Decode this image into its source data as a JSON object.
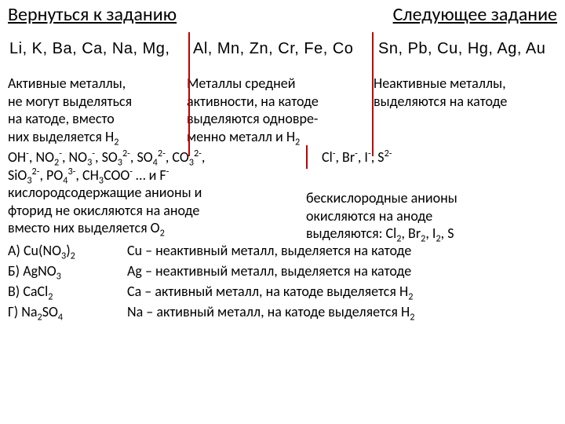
{
  "nav": {
    "back": "Вернуться к заданию",
    "next": "Следующее задание"
  },
  "series": {
    "group1": "Li, K, Ba, Ca, Na, Mg,",
    "group2": "Al, Mn, Zn, Cr, Fe, Co",
    "group3": "Sn, Pb, Cu, Hg, Ag, Au",
    "divider_color": "#c00000",
    "font_size": 20
  },
  "metal_groups": {
    "active": {
      "title": "Активные металлы,",
      "l2": "не могут выделяться",
      "l3": "на катоде, вместо",
      "l4_html": "них выделяется H<sub>2</sub>"
    },
    "medium": {
      "title": "Металлы средней",
      "l2": "активности, на катоде",
      "l3": "выделяются одновре-",
      "l4_html": "менно металл и H<sub>2</sub>"
    },
    "inactive": {
      "title": "Неактивные металлы,",
      "l2": "выделяются на катоде"
    }
  },
  "anions": {
    "oxy_line1_html": "OH<sup>-</sup>, NO<sub>2</sub><sup>-</sup>, NO<sub>3</sub><sup>-</sup>, SO<sub>3</sub><sup>2-</sup>, SO<sub>4</sub><sup>2-</sup>, CO<sub>3</sub><sup>2-</sup>,",
    "oxy_line2_html": "SiO<sub>3</sub><sup>2-</sup>, PO<sub>4</sub><sup>3-</sup>, CH<sub>3</sub>COO<sup>-</sup> … и F<sup>-</sup>",
    "oxy_desc1": "кислородсодержащие анионы и",
    "oxy_desc2": "фторид не окисляются на аноде",
    "oxy_desc3_html": "вместо них выделяется O<sub>2</sub>",
    "nonoxy_line_html": "Cl<sup>-</sup>, Br<sup>-</sup>, I<sup>-</sup>, S<sup>2-</sup>",
    "nonoxy_desc1": "бескислородные анионы",
    "nonoxy_desc2": "окисляются на аноде",
    "nonoxy_desc3_html": "выделяются: Cl<sub>2</sub>, Br<sub>2</sub>, I<sub>2</sub>, S"
  },
  "answers": {
    "a_label_html": "А) Cu(NO<sub>3</sub>)<sub>2</sub>",
    "b_label_html": "Б) AgNO<sub>3</sub>",
    "c_label_html": "В) CaCl<sub>2</sub>",
    "d_label_html": "Г) Na<sub>2</sub>SO<sub>4</sub>",
    "a_expl": "Cu – неактивный металл, выделяется на катоде",
    "b_expl": "Ag – неактивный металл, выделяется на катоде",
    "c_expl_html": "Ca – активный металл, на катоде выделяется H<sub>2</sub>",
    "d_expl_html": "Na – активный металл, на катоде выделяется H<sub>2</sub>"
  }
}
